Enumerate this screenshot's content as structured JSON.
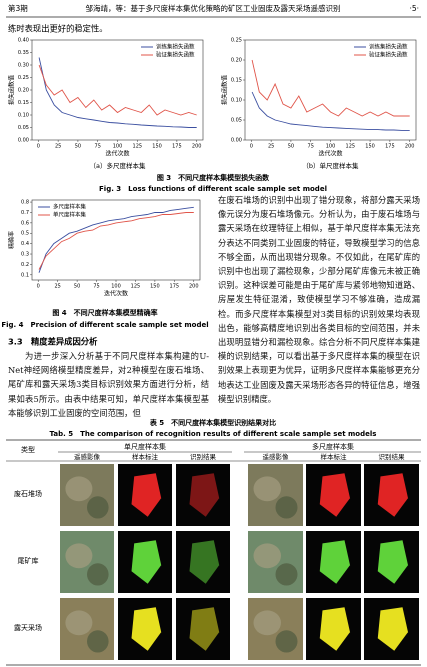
{
  "header": {
    "issue": "第3期",
    "running_title": "邹海靖，等：基于多尺度样本集优化策略的矿区工业固废及露天采场遥感识别",
    "page": "·5·"
  },
  "intro_line": "练时表现出更好的稳定性。",
  "chart_data": [
    {
      "type": "line",
      "subtitle": "（a）多尺度样本集",
      "x_label": "迭代次数",
      "y_label": "损失函数值",
      "legend": "upper right",
      "x": [
        1,
        10,
        20,
        30,
        40,
        50,
        60,
        70,
        80,
        90,
        100,
        110,
        120,
        130,
        140,
        150,
        160,
        170,
        180,
        190,
        200
      ],
      "series": [
        {
          "name": "训练集损失函数",
          "color": "#3b4fa0",
          "values": [
            0.33,
            0.2,
            0.14,
            0.11,
            0.1,
            0.09,
            0.085,
            0.08,
            0.075,
            0.07,
            0.068,
            0.065,
            0.063,
            0.06,
            0.058,
            0.056,
            0.055,
            0.053,
            0.052,
            0.05,
            0.05
          ]
        },
        {
          "name": "验证集损失函数",
          "color": "#e0554a",
          "values": [
            0.3,
            0.22,
            0.18,
            0.2,
            0.15,
            0.17,
            0.13,
            0.16,
            0.12,
            0.14,
            0.11,
            0.13,
            0.12,
            0.11,
            0.14,
            0.1,
            0.12,
            0.11,
            0.1,
            0.11,
            0.1
          ]
        }
      ],
      "xlim": [
        -8,
        208
      ],
      "ylim": [
        0,
        0.4
      ],
      "xticks": [
        0,
        25,
        50,
        75,
        100,
        125,
        150,
        175,
        200
      ],
      "yticks": [
        {
          "value": 0,
          "label": "0.00"
        },
        0.05,
        {
          "value": 0.1,
          "label": "0.10"
        },
        0.15,
        {
          "value": 0.2,
          "label": "0.20"
        },
        0.25,
        {
          "value": 0.3,
          "label": "0.30"
        },
        0.35,
        {
          "value": 0.4,
          "label": "0.40"
        }
      ]
    },
    {
      "type": "line",
      "subtitle": "（b）单尺度样本集",
      "x_label": "迭代次数",
      "y_label": "损失函数值",
      "legend": "upper right",
      "x": [
        1,
        10,
        20,
        30,
        40,
        50,
        60,
        70,
        80,
        90,
        100,
        110,
        120,
        130,
        140,
        150,
        160,
        170,
        180,
        190,
        200
      ],
      "series": [
        {
          "name": "训练集损失函数",
          "color": "#3b4fa0",
          "values": [
            0.12,
            0.08,
            0.06,
            0.05,
            0.045,
            0.04,
            0.038,
            0.036,
            0.034,
            0.032,
            0.031,
            0.03,
            0.029,
            0.028,
            0.027,
            0.026,
            0.026,
            0.025,
            0.025,
            0.024,
            0.024
          ]
        },
        {
          "name": "验证集损失函数",
          "color": "#e0554a",
          "values": [
            0.2,
            0.12,
            0.1,
            0.14,
            0.09,
            0.08,
            0.11,
            0.07,
            0.08,
            0.09,
            0.07,
            0.06,
            0.08,
            0.07,
            0.06,
            0.07,
            0.06,
            0.07,
            0.06,
            0.06,
            0.06
          ]
        }
      ],
      "xlim": [
        -8,
        208
      ],
      "ylim": [
        0,
        0.25
      ],
      "xticks": [
        0,
        25,
        50,
        75,
        100,
        125,
        150,
        175,
        200
      ],
      "yticks": [
        {
          "value": 0,
          "label": "0.00"
        },
        0.05,
        {
          "value": 0.1,
          "label": "0.10"
        },
        0.15,
        {
          "value": 0.2,
          "label": "0.20"
        },
        0.25
      ]
    },
    {
      "type": "line",
      "x_label": "迭代次数",
      "y_label": "精确率",
      "legend": "upper left",
      "x": [
        1,
        10,
        20,
        30,
        40,
        50,
        60,
        70,
        80,
        90,
        100,
        110,
        120,
        130,
        140,
        150,
        160,
        170,
        180,
        190,
        200
      ],
      "series": [
        {
          "name": "多尺度样本集",
          "color": "#3b4fa0",
          "values": [
            0.12,
            0.3,
            0.4,
            0.45,
            0.5,
            0.52,
            0.55,
            0.58,
            0.6,
            0.62,
            0.63,
            0.64,
            0.66,
            0.67,
            0.68,
            0.7,
            0.7,
            0.72,
            0.73,
            0.74,
            0.75
          ]
        },
        {
          "name": "单尺度样本集",
          "color": "#e0554a",
          "values": [
            0.15,
            0.28,
            0.35,
            0.42,
            0.45,
            0.5,
            0.52,
            0.53,
            0.57,
            0.58,
            0.6,
            0.61,
            0.62,
            0.64,
            0.65,
            0.66,
            0.68,
            0.68,
            0.69,
            0.7,
            0.7
          ]
        }
      ],
      "xlim": [
        -8,
        208
      ],
      "ylim": [
        0.05,
        0.82
      ],
      "xticks": [
        0,
        25,
        50,
        75,
        100,
        125,
        150,
        175,
        200
      ],
      "yticks": [
        0.1,
        0.2,
        0.3,
        0.4,
        0.5,
        0.6,
        0.7,
        0.8
      ]
    }
  ],
  "figure3": {
    "caption": "图 3　不同尺度样本集模型损失函数",
    "caption_en": "Fig. 3　Loss functions of different scale sample set model"
  },
  "figure4": {
    "caption": "图 4　不同尺度样本集模型精确率",
    "caption_en": "Fig. 4　Precision of different scale sample set model"
  },
  "section": {
    "heading": "3.3　精度差异成因分析",
    "paragraph": "为进一步深入分析基于不同尺度样本集构建的U-Net神经网络模型精度差异，对2种模型在废石堆场、尾矿库和露天采场3类目标识别效果方面进行分析，结果如表5所示。由表中结果可知，单尺度样本集模型基本能够识别工业固废的空间范围，但"
  },
  "right_paragraph": "在废石堆场的识别中出现了错分现象，将部分露天采场像元误分为废石堆场像元。分析认为，由于废石堆场与露天采场在纹理特征上相似，基于单尺度样本集无法充分表达不同类别工业固废的特征，导致模型学习的信息不够全面，从而出现错分现象。不仅如此，在尾矿库的识别中也出现了漏检现象，少部分尾矿库像元未被正确识别。这种误差可能是由于尾矿库与紧邻地物知道路、房屋发生特征混淆，致使模型学习不够准确，造成漏检。而多尺度样本集模型对3类目标的识别效果均表现出色，能够高精度地识别出各类目标的空间范围，并未出现明显错分和漏检现象。综合分析不同尺度样本集建模的识别结果，可以看出基于多尺度样本集的模型在识别效果上表现更为优异，证明多尺度样本集能够更充分地表达工业固废及露天采场形态各异的特征信息，增强模型识别精度。",
  "table": {
    "caption": "表 5　不同尺度样本集模型识别结果对比",
    "caption_en": "Tab. 5　The comparison of recognition results of different scale sample set models",
    "header": {
      "type": "类型",
      "groups": [
        "单尺度样本集",
        "多尺度样本集"
      ],
      "columns": [
        "遥感影像",
        "样本标注",
        "识别结果",
        "遥感影像",
        "样本标注",
        "识别结果"
      ]
    },
    "rows": [
      "废石堆场",
      "尾矿库",
      "露天采场"
    ]
  }
}
